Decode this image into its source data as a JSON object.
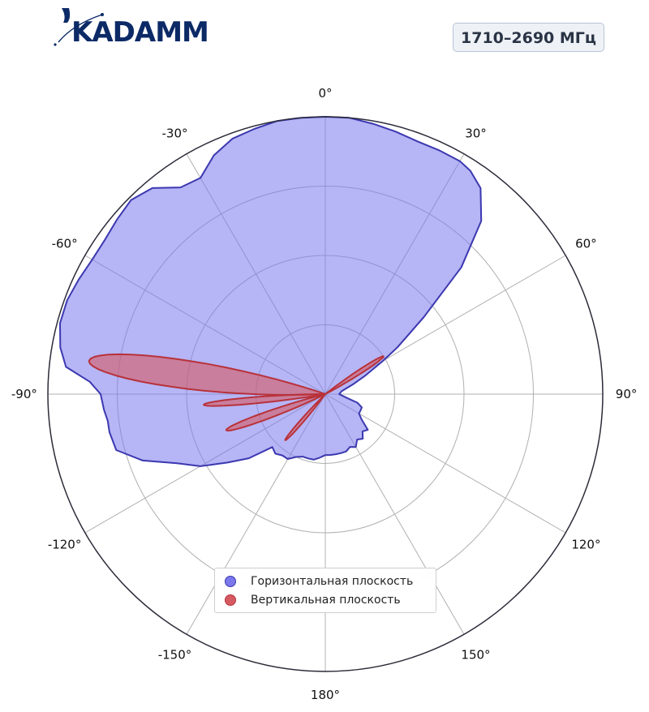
{
  "header": {
    "logo_text": "KADAMM",
    "band_label": "1710–2690 МГц"
  },
  "chart_data": {
    "type": "polar",
    "angle_unit": "deg",
    "zero_direction": "top",
    "direction": "clockwise",
    "radial_range": [
      0,
      1
    ],
    "radial_gridlines": [
      0.25,
      0.5,
      0.75,
      1.0
    ],
    "angular_ticks": [
      0,
      30,
      60,
      90,
      120,
      150,
      180,
      -150,
      -120,
      -90,
      -60,
      -30
    ],
    "angular_tick_labels": [
      "0°",
      "30°",
      "60°",
      "90°",
      "120°",
      "150°",
      "180°",
      "-150°",
      "-120°",
      "-90°",
      "-60°",
      "-30°"
    ],
    "legend_position": "bottom-center",
    "series": [
      {
        "name": "Горизонтальная плоскость",
        "color": "#7a78ec",
        "edge_color": "#3b38b0",
        "points": [
          [
            0,
            1.0
          ],
          [
            5,
            1.0
          ],
          [
            10,
            0.99
          ],
          [
            15,
            0.98
          ],
          [
            20,
            0.97
          ],
          [
            25,
            0.97
          ],
          [
            30,
            0.97
          ],
          [
            33,
            0.96
          ],
          [
            37,
            0.93
          ],
          [
            42,
            0.84
          ],
          [
            47,
            0.67
          ],
          [
            52,
            0.45
          ],
          [
            57,
            0.31
          ],
          [
            60,
            0.24
          ],
          [
            65,
            0.16
          ],
          [
            70,
            0.11
          ],
          [
            80,
            0.06
          ],
          [
            90,
            0.05
          ],
          [
            100,
            0.08
          ],
          [
            105,
            0.12
          ],
          [
            110,
            0.14
          ],
          [
            115,
            0.14
          ],
          [
            120,
            0.14
          ],
          [
            125,
            0.16
          ],
          [
            130,
            0.2
          ],
          [
            135,
            0.19
          ],
          [
            140,
            0.21
          ],
          [
            145,
            0.2
          ],
          [
            150,
            0.22
          ],
          [
            155,
            0.21
          ],
          [
            160,
            0.22
          ],
          [
            165,
            0.22
          ],
          [
            170,
            0.22
          ],
          [
            175,
            0.22
          ],
          [
            180,
            0.22
          ],
          [
            -175,
            0.23
          ],
          [
            -170,
            0.24
          ],
          [
            -165,
            0.24
          ],
          [
            -160,
            0.24
          ],
          [
            -155,
            0.25
          ],
          [
            -150,
            0.27
          ],
          [
            -145,
            0.27
          ],
          [
            -140,
            0.28
          ],
          [
            -135,
            0.27
          ],
          [
            -130,
            0.36
          ],
          [
            -125,
            0.43
          ],
          [
            -120,
            0.52
          ],
          [
            -115,
            0.59
          ],
          [
            -110,
            0.7
          ],
          [
            -105,
            0.78
          ],
          [
            -100,
            0.79
          ],
          [
            -97,
            0.79
          ],
          [
            -94,
            0.8
          ],
          [
            -90,
            0.81
          ],
          [
            -87,
            0.85
          ],
          [
            -84,
            0.94
          ],
          [
            -80,
            0.97
          ],
          [
            -75,
            0.99
          ],
          [
            -70,
            0.99
          ],
          [
            -65,
            0.98
          ],
          [
            -60,
            0.97
          ],
          [
            -55,
            0.97
          ],
          [
            -50,
            0.98
          ],
          [
            -45,
            0.99
          ],
          [
            -40,
            0.97
          ],
          [
            -35,
            0.91
          ],
          [
            -30,
            0.9
          ],
          [
            -25,
            0.95
          ],
          [
            -20,
            0.98
          ],
          [
            -15,
            0.99
          ],
          [
            -10,
            1.0
          ],
          [
            -5,
            1.0
          ]
        ]
      },
      {
        "name": "Вертикальная плоскость",
        "color": "#d65a62",
        "edge_color": "#b8323a",
        "lobes": [
          {
            "center": -82,
            "peak": 0.86,
            "halfwidth": 4.5
          },
          {
            "center": -95,
            "peak": 0.44,
            "halfwidth": 2.0
          },
          {
            "center": -110,
            "peak": 0.38,
            "halfwidth": 2.6
          },
          {
            "center": -139,
            "peak": 0.22,
            "halfwidth": 2.0
          },
          {
            "center": 57,
            "peak": 0.25,
            "halfwidth": 2.2
          }
        ]
      }
    ]
  }
}
